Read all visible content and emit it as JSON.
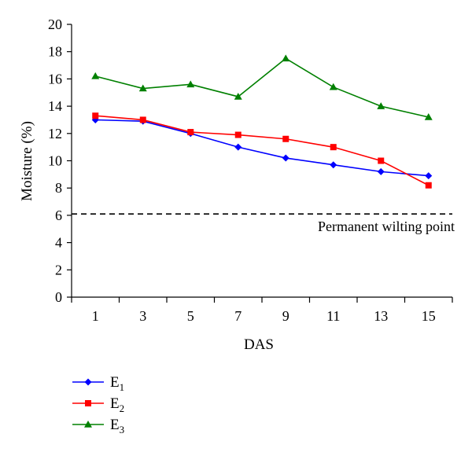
{
  "chart_data": {
    "type": "line",
    "xlabel": "DAS",
    "ylabel": "Moisture (%)",
    "x": [
      1,
      3,
      5,
      7,
      9,
      11,
      13,
      15
    ],
    "x_ticks": [
      "1",
      "3",
      "5",
      "7",
      "9",
      "11",
      "13",
      "15"
    ],
    "ylim": [
      0,
      20
    ],
    "y_ticks": [
      "0",
      "2",
      "4",
      "6",
      "8",
      "10",
      "12",
      "14",
      "16",
      "18",
      "20"
    ],
    "grid": false,
    "legend_position": "bottom-left",
    "series": [
      {
        "name": "E",
        "subscript": "1",
        "color": "#0000ff",
        "marker": "diamond",
        "values": [
          13.0,
          12.9,
          12.0,
          11.0,
          10.2,
          9.7,
          9.2,
          8.9
        ]
      },
      {
        "name": "E",
        "subscript": "2",
        "color": "#ff0000",
        "marker": "square",
        "values": [
          13.3,
          13.0,
          12.1,
          11.9,
          11.6,
          11.0,
          10.0,
          8.2
        ]
      },
      {
        "name": "E",
        "subscript": "3",
        "color": "#008000",
        "marker": "triangle",
        "values": [
          16.2,
          15.3,
          15.6,
          14.7,
          17.5,
          15.4,
          14.0,
          13.2
        ]
      }
    ],
    "reference_line": {
      "label": "Permanent wilting point",
      "value": 6.1,
      "style": "dashed",
      "color": "#000000"
    }
  }
}
